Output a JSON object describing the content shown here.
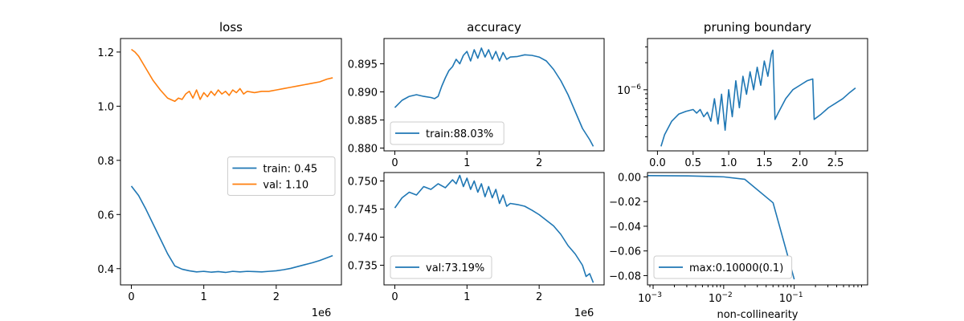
{
  "colors": {
    "blue": "#1f77b4",
    "orange": "#ff7f0e"
  },
  "chart_data": [
    {
      "id": "loss",
      "type": "line",
      "title": "loss",
      "xlabel": "",
      "x_offset_label": "1e6",
      "xlim": [
        -150000,
        2900000
      ],
      "ylim": [
        0.34,
        1.25
      ],
      "x_ticks": [
        0,
        1000000,
        2000000
      ],
      "x_tick_labels": [
        "0",
        "1",
        "2"
      ],
      "y_ticks": [
        0.4,
        0.6,
        0.8,
        1.0,
        1.2
      ],
      "y_tick_labels": [
        "0.4",
        "0.6",
        "0.8",
        "1.0",
        "1.2"
      ],
      "legend": {
        "position": "center-right"
      },
      "series": [
        {
          "name": "train: 0.45",
          "color": "#1f77b4",
          "x": [
            0,
            100000,
            200000,
            300000,
            400000,
            500000,
            600000,
            700000,
            800000,
            900000,
            1000000,
            1100000,
            1200000,
            1300000,
            1400000,
            1500000,
            1600000,
            1700000,
            1800000,
            1900000,
            2000000,
            2100000,
            2200000,
            2300000,
            2400000,
            2500000,
            2600000,
            2700000,
            2780000
          ],
          "y": [
            0.705,
            0.67,
            0.62,
            0.565,
            0.51,
            0.455,
            0.41,
            0.398,
            0.392,
            0.388,
            0.39,
            0.387,
            0.389,
            0.386,
            0.39,
            0.388,
            0.39,
            0.389,
            0.388,
            0.39,
            0.392,
            0.396,
            0.401,
            0.408,
            0.415,
            0.422,
            0.43,
            0.44,
            0.448
          ]
        },
        {
          "name": "val: 1.10",
          "color": "#ff7f0e",
          "x": [
            0,
            50000,
            100000,
            200000,
            300000,
            400000,
            500000,
            600000,
            650000,
            700000,
            750000,
            800000,
            850000,
            900000,
            950000,
            1000000,
            1050000,
            1100000,
            1150000,
            1200000,
            1250000,
            1300000,
            1350000,
            1400000,
            1450000,
            1500000,
            1550000,
            1600000,
            1700000,
            1800000,
            1900000,
            2000000,
            2100000,
            2200000,
            2300000,
            2400000,
            2500000,
            2600000,
            2700000,
            2780000
          ],
          "y": [
            1.21,
            1.2,
            1.185,
            1.14,
            1.095,
            1.06,
            1.03,
            1.018,
            1.03,
            1.025,
            1.045,
            1.055,
            1.03,
            1.06,
            1.025,
            1.05,
            1.035,
            1.055,
            1.04,
            1.06,
            1.045,
            1.055,
            1.04,
            1.06,
            1.05,
            1.065,
            1.045,
            1.055,
            1.05,
            1.055,
            1.055,
            1.06,
            1.065,
            1.07,
            1.075,
            1.08,
            1.085,
            1.09,
            1.1,
            1.105
          ]
        }
      ]
    },
    {
      "id": "accuracy",
      "type": "line",
      "title": "accuracy",
      "xlabel": "",
      "xlim": [
        -150000,
        2900000
      ],
      "ylim": [
        0.8795,
        0.8995
      ],
      "x_ticks": [
        0,
        1000000,
        2000000
      ],
      "x_tick_labels": [
        "0",
        "1",
        "2"
      ],
      "y_ticks": [
        0.88,
        0.885,
        0.89,
        0.895
      ],
      "y_tick_labels": [
        "0.880",
        "0.885",
        "0.890",
        "0.895"
      ],
      "legend": {
        "position": "lower-left"
      },
      "series": [
        {
          "name": "train:88.03%",
          "color": "#1f77b4",
          "x": [
            0,
            100000,
            200000,
            300000,
            400000,
            500000,
            550000,
            600000,
            650000,
            700000,
            750000,
            800000,
            850000,
            900000,
            950000,
            1000000,
            1050000,
            1100000,
            1150000,
            1200000,
            1250000,
            1300000,
            1350000,
            1400000,
            1450000,
            1500000,
            1550000,
            1600000,
            1700000,
            1800000,
            1900000,
            2000000,
            2100000,
            2200000,
            2300000,
            2400000,
            2500000,
            2600000,
            2700000,
            2750000
          ],
          "y": [
            0.8872,
            0.8885,
            0.8892,
            0.8895,
            0.8892,
            0.889,
            0.8888,
            0.8892,
            0.891,
            0.8925,
            0.8938,
            0.8945,
            0.8958,
            0.895,
            0.8965,
            0.8972,
            0.8955,
            0.8975,
            0.896,
            0.8978,
            0.8962,
            0.8975,
            0.8958,
            0.8972,
            0.8955,
            0.897,
            0.8958,
            0.8962,
            0.8963,
            0.8966,
            0.8965,
            0.8962,
            0.8955,
            0.894,
            0.892,
            0.8895,
            0.8865,
            0.8835,
            0.8815,
            0.8803
          ]
        }
      ]
    },
    {
      "id": "val_accuracy",
      "type": "line",
      "title": "",
      "xlabel": "",
      "x_offset_label": "1e6",
      "xlim": [
        -150000,
        2900000
      ],
      "ylim": [
        0.7315,
        0.7515
      ],
      "x_ticks": [
        0,
        1000000,
        2000000
      ],
      "x_tick_labels": [
        "0",
        "1",
        "2"
      ],
      "y_ticks": [
        0.735,
        0.74,
        0.745,
        0.75
      ],
      "y_tick_labels": [
        "0.735",
        "0.740",
        "0.745",
        "0.750"
      ],
      "legend": {
        "position": "lower-left"
      },
      "series": [
        {
          "name": "val:73.19%",
          "color": "#1f77b4",
          "x": [
            0,
            100000,
            200000,
            300000,
            400000,
            500000,
            600000,
            700000,
            800000,
            850000,
            900000,
            950000,
            1000000,
            1050000,
            1100000,
            1150000,
            1200000,
            1250000,
            1300000,
            1350000,
            1400000,
            1450000,
            1500000,
            1550000,
            1600000,
            1700000,
            1800000,
            1900000,
            2000000,
            2100000,
            2200000,
            2300000,
            2400000,
            2500000,
            2600000,
            2650000,
            2700000,
            2750000
          ],
          "y": [
            0.7452,
            0.747,
            0.748,
            0.7475,
            0.749,
            0.7485,
            0.7495,
            0.7488,
            0.7502,
            0.7495,
            0.751,
            0.749,
            0.7505,
            0.7485,
            0.75,
            0.748,
            0.7495,
            0.7472,
            0.749,
            0.747,
            0.7485,
            0.746,
            0.7475,
            0.7455,
            0.746,
            0.7458,
            0.7455,
            0.7448,
            0.744,
            0.743,
            0.742,
            0.7405,
            0.7385,
            0.737,
            0.735,
            0.733,
            0.7335,
            0.7319
          ]
        }
      ]
    },
    {
      "id": "pruning_boundary",
      "type": "line",
      "title": "pruning boundary",
      "xlabel": "",
      "y_scale": "log",
      "xlim": [
        -0.14,
        2.95
      ],
      "ylim_log10": [
        -6.68,
        -5.43
      ],
      "x_ticks": [
        0.0,
        0.5,
        1.0,
        1.5,
        2.0,
        2.5
      ],
      "x_tick_labels": [
        "0.0",
        "0.5",
        "1.0",
        "1.5",
        "2.0",
        "2.5"
      ],
      "y_major_tick_log10": -6,
      "y_major_tick_base": "10",
      "y_major_tick_exp": "−6",
      "series": [
        {
          "name": "",
          "color": "#1f77b4",
          "x": [
            0.05,
            0.1,
            0.2,
            0.3,
            0.4,
            0.5,
            0.55,
            0.6,
            0.65,
            0.7,
            0.75,
            0.8,
            0.85,
            0.9,
            0.95,
            1.0,
            1.05,
            1.1,
            1.15,
            1.2,
            1.25,
            1.3,
            1.35,
            1.4,
            1.45,
            1.5,
            1.55,
            1.6,
            1.62,
            1.65,
            1.7,
            1.8,
            1.9,
            2.0,
            2.1,
            2.18,
            2.2,
            2.3,
            2.4,
            2.5,
            2.6,
            2.7,
            2.78
          ],
          "y_log10": [
            -6.63,
            -6.5,
            -6.35,
            -6.27,
            -6.24,
            -6.22,
            -6.26,
            -6.22,
            -6.3,
            -6.25,
            -6.35,
            -6.1,
            -6.38,
            -6.05,
            -6.45,
            -6.0,
            -6.3,
            -5.9,
            -6.2,
            -5.85,
            -6.05,
            -5.8,
            -6.0,
            -5.75,
            -5.95,
            -5.68,
            -5.85,
            -5.6,
            -5.56,
            -6.33,
            -6.25,
            -6.1,
            -6.0,
            -5.95,
            -5.9,
            -5.88,
            -6.33,
            -6.27,
            -6.2,
            -6.15,
            -6.1,
            -6.03,
            -5.98
          ]
        }
      ]
    },
    {
      "id": "non_collinearity",
      "type": "line",
      "title": "",
      "xlabel": "non-collinearity",
      "x_scale": "log",
      "xlim_log10": [
        -3.08,
        0.04
      ],
      "ylim": [
        -0.0875,
        0.0035
      ],
      "x_ticks_log10": [
        -3,
        -2,
        -1
      ],
      "x_tick_base": "10",
      "x_tick_exps": [
        "−3",
        "−2",
        "−1"
      ],
      "y_ticks": [
        0.0,
        -0.02,
        -0.04,
        -0.06,
        -0.08
      ],
      "y_tick_labels": [
        "0.00",
        "−0.02",
        "−0.04",
        "−0.06",
        "−0.08"
      ],
      "legend": {
        "position": "lower-left"
      },
      "series": [
        {
          "name": "max:0.10000(0.1)",
          "color": "#1f77b4",
          "x_log10": [
            -3.08,
            -2.5,
            -2.0,
            -1.7,
            -1.3,
            -1.0
          ],
          "y": [
            0.001,
            0.0008,
            0.0,
            -0.002,
            -0.021,
            -0.083
          ]
        }
      ]
    }
  ]
}
